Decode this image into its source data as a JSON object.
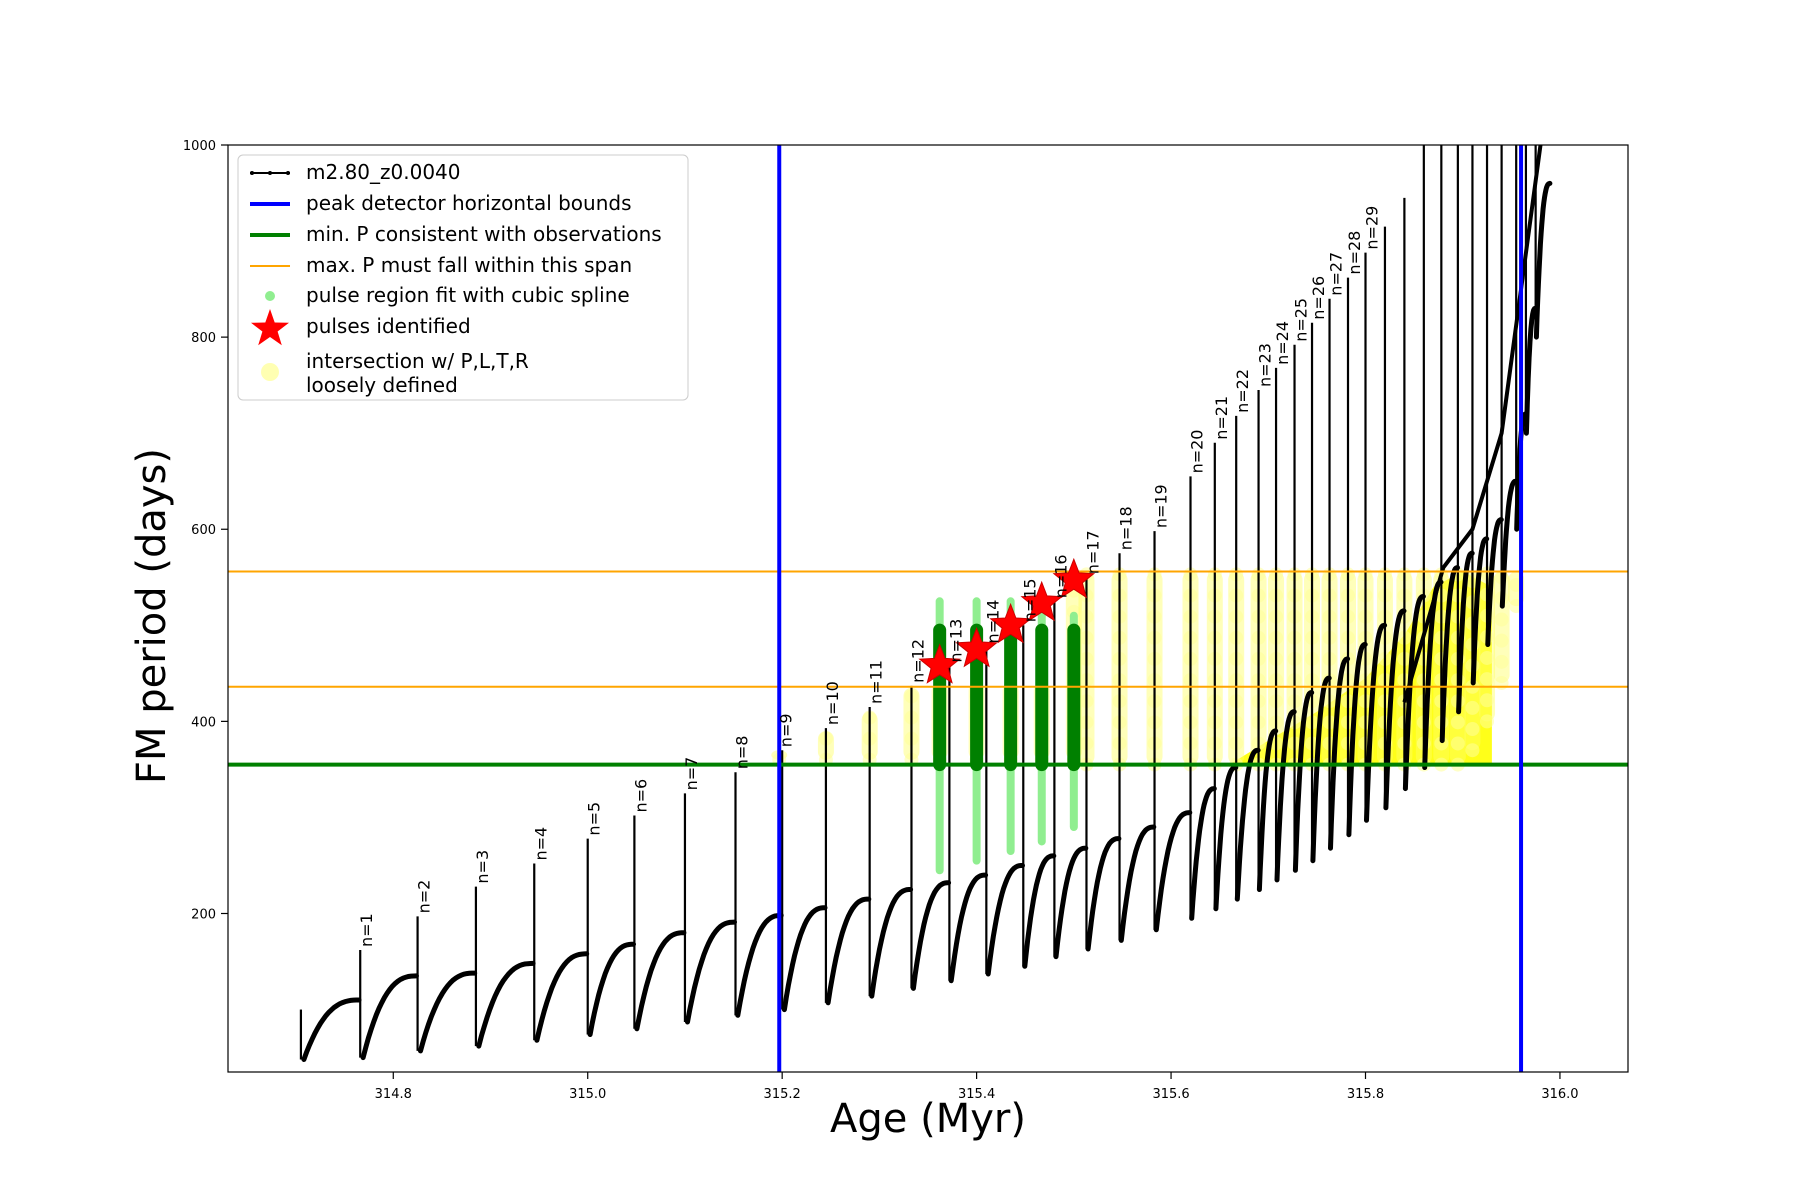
{
  "chart_data": {
    "type": "scatter",
    "xlabel": "Age (Myr)",
    "ylabel": "FM period (days)",
    "xlim": [
      314.63,
      316.07
    ],
    "ylim": [
      35,
      1000
    ],
    "xticks": [
      314.8,
      315.0,
      315.2,
      315.4,
      315.6,
      315.8,
      316.0
    ],
    "xtick_labels": [
      "314.8",
      "315.0",
      "315.2",
      "315.4",
      "315.6",
      "315.8",
      "316.0"
    ],
    "yticks": [
      200,
      400,
      600,
      800,
      1000
    ],
    "ytick_labels": [
      "200",
      "400",
      "600",
      "800",
      "1000"
    ],
    "grid": false,
    "legend_position": "top-left",
    "legend": [
      {
        "label": "m2.80_z0.0040",
        "kind": "line-dot",
        "color": "#000000"
      },
      {
        "label": "peak detector horizontal bounds",
        "kind": "line",
        "color": "#0000ff"
      },
      {
        "label": "min. P consistent with observations",
        "kind": "line",
        "color": "#008000"
      },
      {
        "label": "max. P must fall within this span",
        "kind": "thin-line",
        "color": "#ffa500"
      },
      {
        "label": "pulse region fit with cubic spline",
        "kind": "dot",
        "color": "#90ee90"
      },
      {
        "label": "pulses identified",
        "kind": "star",
        "color": "#ff0000"
      },
      {
        "label": "intersection w/ P,L,T,R",
        "label2": "loosely defined",
        "kind": "big-dot",
        "color": "#ffff00"
      }
    ],
    "vertical_lines": [
      315.197,
      315.96
    ],
    "min_period_line": 355,
    "max_period_span": [
      436,
      556
    ],
    "pulses": {
      "ages": [
        314.705,
        314.766,
        314.825,
        314.885,
        314.945,
        315.0,
        315.048,
        315.1,
        315.152,
        315.2,
        315.245,
        315.29,
        315.333,
        315.372,
        315.41,
        315.448,
        315.48,
        315.513,
        315.547,
        315.583,
        315.62,
        315.645,
        315.667,
        315.69,
        315.708,
        315.727,
        315.745,
        315.763,
        315.782,
        315.8,
        315.82,
        315.84,
        315.86,
        315.878,
        315.895,
        315.91,
        315.925,
        315.94,
        315.955,
        315.965,
        315.975
      ],
      "peaks": [
        100,
        162,
        197,
        228,
        252,
        278,
        302,
        325,
        347,
        370,
        393,
        415,
        437,
        458,
        478,
        500,
        525,
        550,
        575,
        598,
        655,
        690,
        718,
        745,
        768,
        792,
        815,
        840,
        862,
        888,
        915,
        945,
        1000,
        1000,
        1000,
        1000,
        1000,
        1000,
        1000,
        1000,
        1000
      ],
      "trough_starts": [
        48,
        50,
        57,
        62,
        68,
        74,
        80,
        87,
        94,
        100,
        107,
        114,
        122,
        130,
        137,
        145,
        155,
        163,
        172,
        183,
        195,
        205,
        215,
        225,
        235,
        245,
        255,
        268,
        282,
        297,
        310,
        330,
        352,
        380,
        410,
        440,
        480,
        520,
        600,
        700,
        800
      ],
      "plateaus": [
        110,
        135,
        138,
        148,
        158,
        168,
        180,
        191,
        198,
        206,
        215,
        225,
        232,
        240,
        250,
        260,
        268,
        278,
        290,
        305,
        330,
        352,
        370,
        390,
        410,
        430,
        445,
        465,
        480,
        500,
        515,
        530,
        545,
        560,
        575,
        590,
        610,
        650,
        720,
        830,
        960
      ],
      "labels": [
        "n=1",
        "n=2",
        "n=3",
        "n=4",
        "n=5",
        "n=6",
        "n=7",
        "n=8",
        "n=9",
        "n=10",
        "n=11",
        "n=12",
        "n=13",
        "n=14",
        "n=15",
        "n=16",
        "n=17",
        "n=18",
        "n=19",
        "n=20",
        "n=21",
        "n=22",
        "n=23",
        "n=24",
        "n=25",
        "n=26",
        "n=27",
        "n=28",
        "n=29"
      ],
      "label_ages": [
        314.766,
        314.825,
        314.885,
        314.945,
        315.0,
        315.048,
        315.1,
        315.152,
        315.197,
        315.245,
        315.29,
        315.333,
        315.372,
        315.41,
        315.448,
        315.48,
        315.513,
        315.547,
        315.583,
        315.62,
        315.645,
        315.667,
        315.69,
        315.708,
        315.727,
        315.745,
        315.763,
        315.782,
        315.8
      ],
      "label_periods": [
        162,
        197,
        228,
        252,
        278,
        302,
        325,
        347,
        370,
        393,
        415,
        437,
        458,
        478,
        500,
        525,
        550,
        575,
        598,
        655,
        690,
        718,
        745,
        768,
        792,
        815,
        840,
        862,
        888
      ]
    },
    "pulses_identified": {
      "ages": [
        315.362,
        315.4,
        315.435,
        315.467,
        315.5
      ],
      "periods": [
        458,
        475,
        500,
        523,
        547
      ]
    },
    "cubic_spline_regions": {
      "ages": [
        315.362,
        315.4,
        315.435,
        315.467,
        315.5
      ],
      "low": [
        245,
        255,
        265,
        275,
        290
      ],
      "high": [
        525,
        525,
        525,
        515,
        510
      ]
    },
    "spline_fit_dark": {
      "ages": [
        315.362,
        315.4,
        315.435,
        315.467,
        315.5
      ],
      "low": [
        355,
        355,
        355,
        355,
        355
      ],
      "high": [
        495,
        495,
        495,
        495,
        495
      ]
    },
    "intersection_loosely_defined": {
      "ages": [
        315.197,
        315.245,
        315.29,
        315.333,
        315.362,
        315.4,
        315.435,
        315.467,
        315.5,
        315.513,
        315.547,
        315.583,
        315.62,
        315.645,
        315.667,
        315.69,
        315.708,
        315.727,
        315.745,
        315.763,
        315.782,
        315.8,
        315.82,
        315.84,
        315.86,
        315.878,
        315.895,
        315.91,
        315.925,
        315.94,
        315.955
      ],
      "low": [
        360,
        360,
        360,
        360,
        360,
        360,
        360,
        360,
        360,
        355,
        355,
        355,
        355,
        355,
        355,
        355,
        355,
        355,
        355,
        355,
        355,
        355,
        355,
        355,
        355,
        355,
        355,
        370,
        400,
        440,
        520
      ],
      "high": [
        370,
        390,
        410,
        435,
        440,
        440,
        440,
        440,
        556,
        556,
        556,
        556,
        556,
        556,
        556,
        556,
        556,
        556,
        556,
        556,
        556,
        556,
        556,
        556,
        556,
        556,
        556,
        556,
        556,
        556,
        556
      ]
    },
    "yellow_band": {
      "x": [
        315.66,
        315.7,
        315.75,
        315.8,
        315.84,
        315.87,
        315.9,
        315.93
      ],
      "upper": [
        355,
        380,
        410,
        445,
        490,
        540,
        556,
        540
      ]
    },
    "final_envelope": {
      "x": [
        315.84,
        315.88,
        315.91,
        315.94,
        315.96,
        315.98
      ],
      "y": [
        420,
        560,
        600,
        700,
        850,
        1000
      ]
    }
  }
}
